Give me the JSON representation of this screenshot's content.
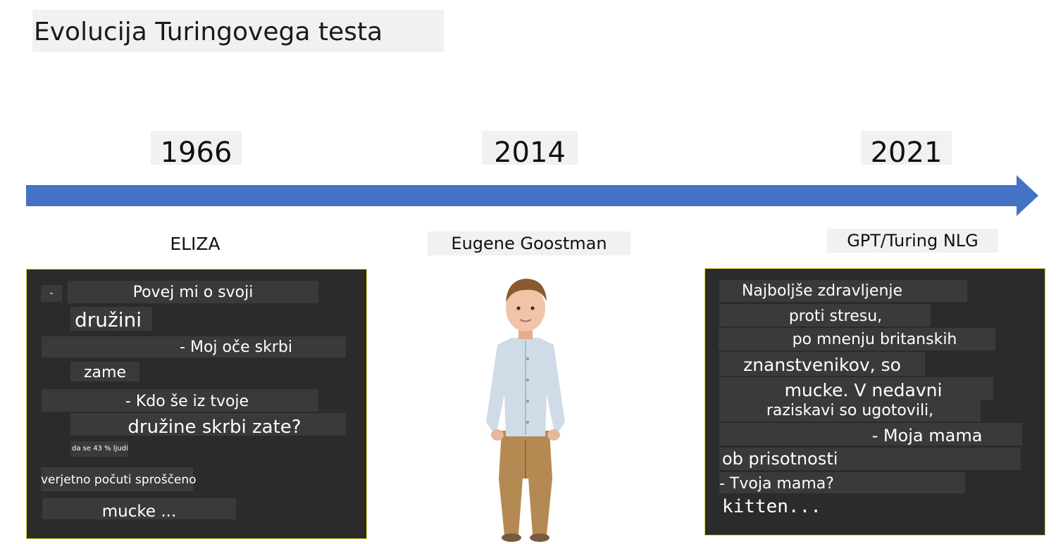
{
  "title": "Evolucija Turingovega testa",
  "timeline": {
    "accent_color": "#4472c4",
    "years": [
      "1966",
      "2014",
      "2021"
    ]
  },
  "eliza": {
    "name": "ELIZA",
    "lines": [
      "-",
      "Povej mi o svoji",
      "družini",
      "- Moj oče skrbi",
      "zame",
      "- Kdo še iz tvoje",
      "družine skrbi zate?",
      "da se 43 % ljudi",
      "verjetno počuti sproščeno",
      "mucke ..."
    ]
  },
  "eugene": {
    "name": "Eugene Goostman",
    "image": "boy-photo-icon"
  },
  "gpt": {
    "name": "GPT/Turing NLG",
    "lines": [
      "Najboljše zdravljenje",
      "proti stresu,",
      "po mnenju britanskih",
      "znanstvenikov, so",
      "mucke. V nedavni",
      "raziskavi so ugotovili,",
      "- Moja mama",
      "ob prisotnosti",
      "- Tvoja mama?",
      "kitten..."
    ]
  }
}
